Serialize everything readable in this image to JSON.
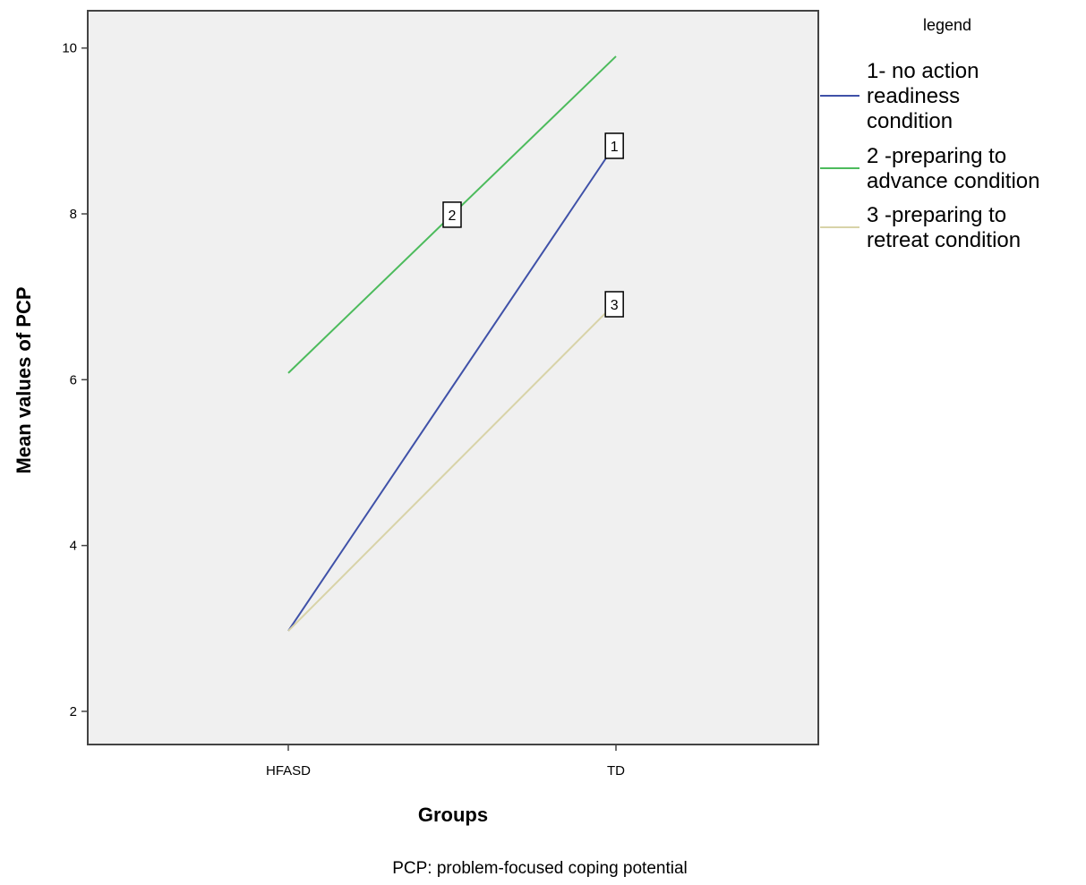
{
  "chart_data": {
    "type": "line",
    "xlabel": "Groups",
    "ylabel": "Mean values of PCP",
    "categories": [
      "HFASD",
      "TD"
    ],
    "ylim": [
      1.6,
      10.45
    ],
    "yticks": [
      2,
      4,
      6,
      8,
      10
    ],
    "grid": false,
    "legend": {
      "title": "legend",
      "placement": "right"
    },
    "series": [
      {
        "name": "1- no action readiness condition",
        "name_lines": [
          "1- no action",
          "readiness",
          "condition"
        ],
        "marker_label": "1",
        "color": "#3f51a8",
        "values": [
          2.97,
          8.85
        ]
      },
      {
        "name": "2 -preparing to advance condition",
        "name_lines": [
          "2 -preparing to",
          "advance condition"
        ],
        "marker_label": "2",
        "color": "#4cbb5c",
        "values": [
          6.08,
          9.9
        ]
      },
      {
        "name": "3 -preparing to retreat condition",
        "name_lines": [
          "3 -preparing to",
          "retreat condition"
        ],
        "marker_label": "3",
        "color": "#d8d3a8",
        "values": [
          2.97,
          6.93
        ]
      }
    ],
    "footnote": "PCP: problem-focused coping potential"
  }
}
